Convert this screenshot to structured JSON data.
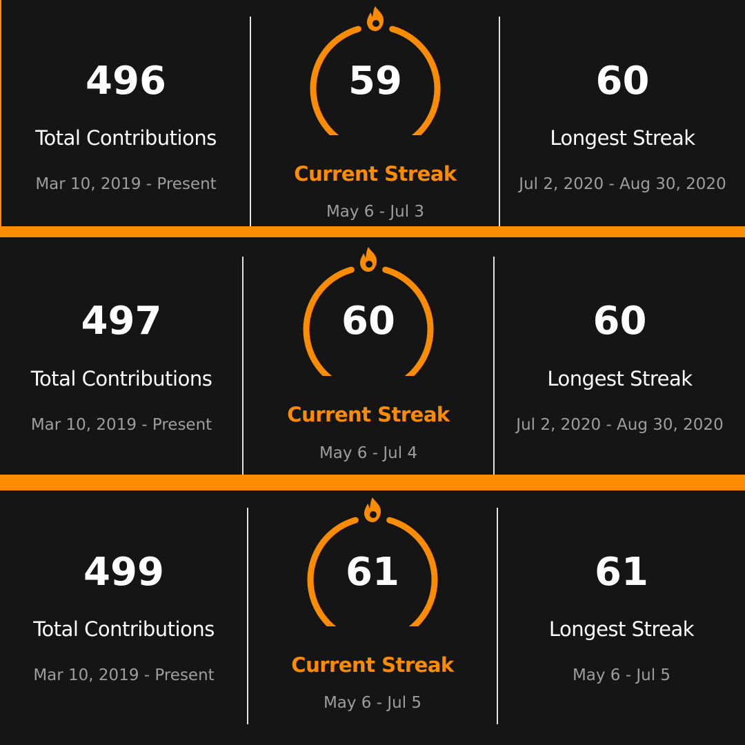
{
  "colors": {
    "background": "#151515",
    "accent": "#fb8c00",
    "primary_text": "#fefefe",
    "secondary_text": "#9e9e9e",
    "divider": "#e4e2e2"
  },
  "cards": [
    {
      "total": {
        "value": "496",
        "label": "Total Contributions",
        "range": "Mar 10, 2019 - Present"
      },
      "current": {
        "value": "59",
        "label": "Current Streak",
        "range": "May 6 - Jul 3",
        "icon": "fire-icon"
      },
      "longest": {
        "value": "60",
        "label": "Longest Streak",
        "range": "Jul 2, 2020 - Aug 30, 2020"
      }
    },
    {
      "total": {
        "value": "497",
        "label": "Total Contributions",
        "range": "Mar 10, 2019 - Present"
      },
      "current": {
        "value": "60",
        "label": "Current Streak",
        "range": "May 6 - Jul 4",
        "icon": "fire-icon"
      },
      "longest": {
        "value": "60",
        "label": "Longest Streak",
        "range": "Jul 2, 2020 - Aug 30, 2020"
      }
    },
    {
      "total": {
        "value": "499",
        "label": "Total Contributions",
        "range": "Mar 10, 2019 - Present"
      },
      "current": {
        "value": "61",
        "label": "Current Streak",
        "range": "May 6 - Jul 5",
        "icon": "fire-icon"
      },
      "longest": {
        "value": "61",
        "label": "Longest Streak",
        "range": "May 6 - Jul 5"
      }
    }
  ]
}
